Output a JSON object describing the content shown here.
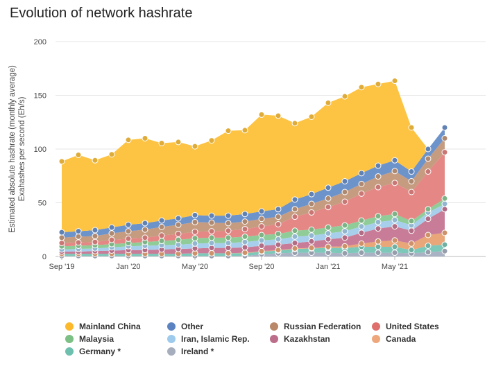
{
  "title": "Evolution of network hashrate",
  "chart_data": {
    "type": "area",
    "stacked": true,
    "title": "Evolution of network hashrate",
    "ylabel_lines": [
      "Estimated absolute hashrate (monthly average)",
      "Exahashes per second (Eh/s)"
    ],
    "xlabel": "",
    "ylim": [
      0,
      200
    ],
    "yticks": [
      0,
      50,
      100,
      150,
      200
    ],
    "grid": "horizontal",
    "legend_position": "bottom",
    "x_tick_labels": [
      {
        "index": 0,
        "label": "Sep '19"
      },
      {
        "index": 4,
        "label": "Jan '20"
      },
      {
        "index": 8,
        "label": "May '20"
      },
      {
        "index": 12,
        "label": "Sep '20"
      },
      {
        "index": 16,
        "label": "Jan '21"
      },
      {
        "index": 20,
        "label": "May '21"
      }
    ],
    "categories": [
      "Sep 2019",
      "Oct 2019",
      "Nov 2019",
      "Dec 2019",
      "Jan 2020",
      "Feb 2020",
      "Mar 2020",
      "Apr 2020",
      "May 2020",
      "Jun 2020",
      "Jul 2020",
      "Aug 2020",
      "Sep 2020",
      "Oct 2020",
      "Nov 2020",
      "Dec 2020",
      "Jan 2021",
      "Feb 2021",
      "Mar 2021",
      "Apr 2021",
      "May 2021",
      "Jun 2021",
      "Jul 2021",
      "Aug 2021"
    ],
    "series_order_note": "bottom to top",
    "series": [
      {
        "name": "Ireland *",
        "color": "#aab3c4",
        "values": [
          0.5,
          0.5,
          0.5,
          0.5,
          0.5,
          0.5,
          0.5,
          0.5,
          0.5,
          0.5,
          0.5,
          0.5,
          2,
          3,
          3.5,
          3.5,
          3.5,
          3,
          3.5,
          3.5,
          3.5,
          3,
          4,
          5
        ]
      },
      {
        "name": "Germany *",
        "color": "#7ec8b9",
        "values": [
          2,
          2,
          2,
          2,
          2,
          2,
          2,
          2,
          2.5,
          2.5,
          2.5,
          2.5,
          2.5,
          2.5,
          3.5,
          4,
          4.5,
          5,
          5.5,
          5.5,
          5.5,
          3,
          6,
          6
        ]
      },
      {
        "name": "Canada",
        "color": "#e9a678",
        "values": [
          0,
          0,
          0,
          0,
          0,
          0,
          0,
          0,
          0,
          0,
          0,
          0.5,
          0.5,
          0.5,
          0.5,
          0.5,
          1,
          1.5,
          3,
          5,
          6,
          6,
          10,
          11
        ]
      },
      {
        "name": "Kazakhstan",
        "color": "#c97c97",
        "values": [
          2,
          2,
          2.5,
          3,
          3.5,
          3.5,
          4,
          4.5,
          4.5,
          5,
          5,
          5,
          5,
          5,
          5,
          6,
          7,
          8,
          10,
          12,
          13,
          12,
          15,
          22
        ]
      },
      {
        "name": "Iran, Islamic Rep.",
        "color": "#a7cfec",
        "values": [
          2,
          2.5,
          2.5,
          3,
          3.5,
          4,
          4,
          4,
          4.5,
          4.5,
          4.5,
          5,
          5,
          5,
          6,
          5.5,
          5.5,
          6,
          6,
          6,
          6,
          5,
          6,
          5
        ]
      },
      {
        "name": "Malaysia",
        "color": "#8fcc97",
        "values": [
          3,
          3,
          3,
          3,
          3,
          3.5,
          4,
          4.5,
          5,
          5,
          5,
          5,
          5,
          5,
          5.5,
          5.5,
          5.5,
          5.5,
          5.5,
          5.5,
          5.5,
          4,
          3,
          5
        ]
      },
      {
        "name": "United States",
        "color": "#e48785",
        "values": [
          3,
          3,
          3,
          4,
          4,
          4,
          5,
          5.5,
          6,
          6,
          6.5,
          7,
          8,
          9,
          13,
          16,
          19,
          22,
          25,
          27,
          29,
          27,
          35,
          43
        ]
      },
      {
        "name": "Russian Federation",
        "color": "#c69c80",
        "values": [
          5,
          5.5,
          5.5,
          6,
          7,
          7.5,
          8,
          8.5,
          9,
          8,
          7,
          7,
          7,
          7,
          7,
          8,
          8,
          9,
          9,
          10,
          11,
          10,
          12,
          13
        ]
      },
      {
        "name": "Other",
        "color": "#6d93cb",
        "values": [
          5,
          5,
          5.5,
          5.5,
          6,
          6,
          6,
          6,
          6.5,
          6.5,
          7,
          7,
          7,
          7,
          9,
          9,
          10,
          10,
          10,
          10,
          10,
          9,
          9,
          10
        ]
      },
      {
        "name": "Mainland China",
        "color": "#fdc342",
        "values": [
          66,
          71,
          65,
          68,
          79,
          79,
          72,
          71,
          64,
          70,
          79,
          78,
          90,
          87,
          71,
          72,
          79,
          79,
          80,
          76,
          74,
          41,
          0,
          0
        ]
      }
    ]
  },
  "legend": [
    {
      "label": "Mainland China",
      "color": "#fdb92c"
    },
    {
      "label": "Other",
      "color": "#5b83c2"
    },
    {
      "label": "Russian Federation",
      "color": "#b9876a"
    },
    {
      "label": "United States",
      "color": "#df6f6d"
    },
    {
      "label": "Malaysia",
      "color": "#7cc085"
    },
    {
      "label": "Iran, Islamic Rep.",
      "color": "#9ecbec"
    },
    {
      "label": "Kazakhstan",
      "color": "#bb6d89"
    },
    {
      "label": "Canada",
      "color": "#eea77b"
    },
    {
      "label": "Germany *",
      "color": "#6dbfae"
    },
    {
      "label": "Ireland *",
      "color": "#a6aebd"
    }
  ]
}
